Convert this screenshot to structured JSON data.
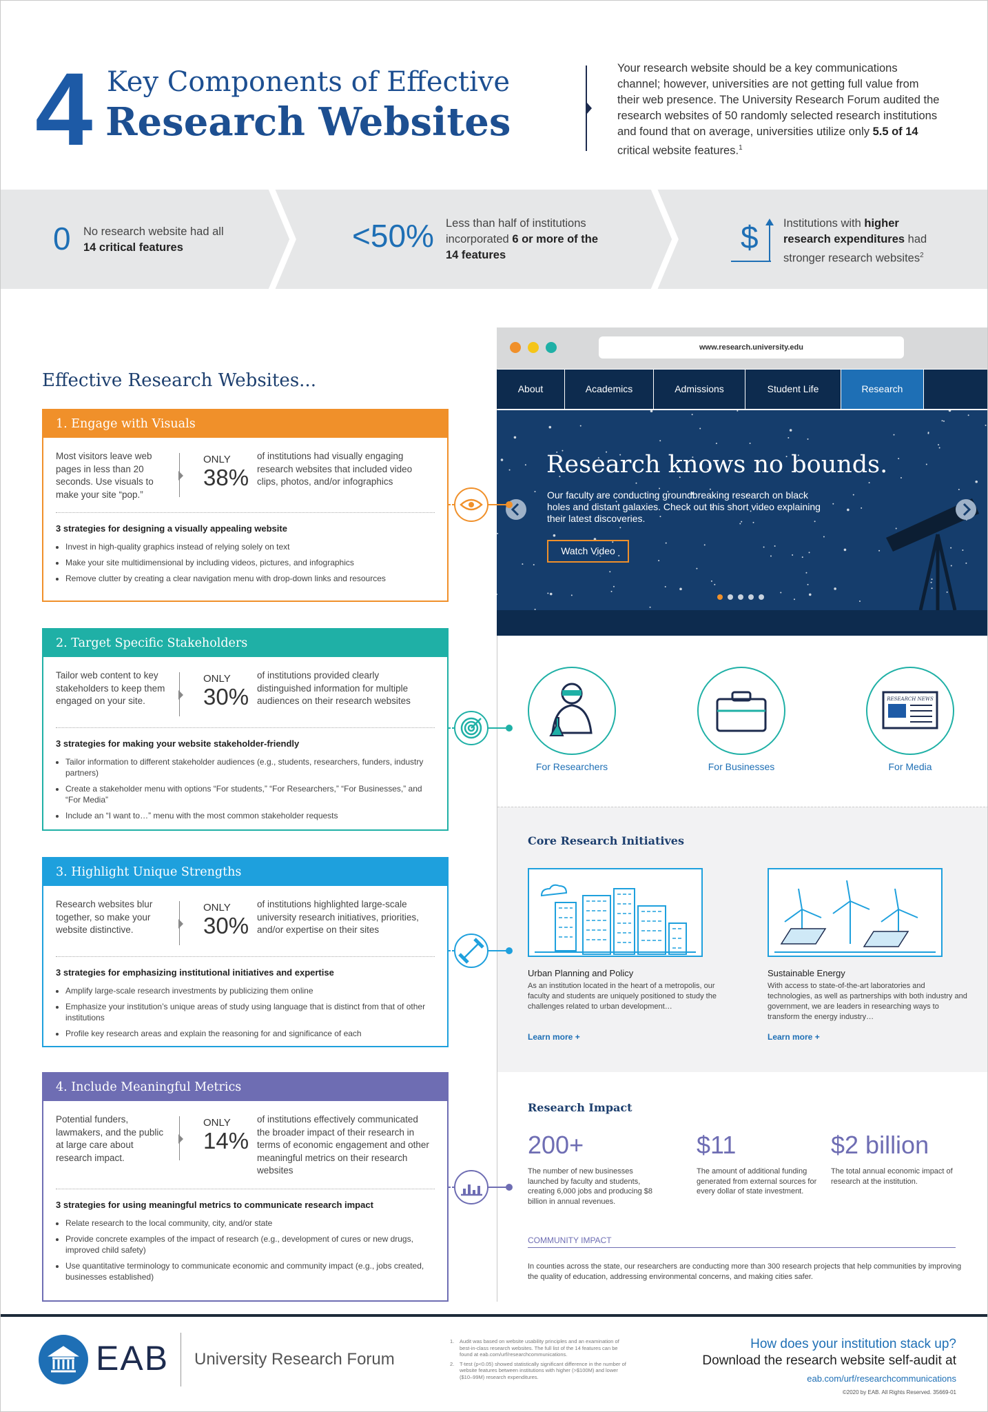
{
  "header": {
    "number": "4",
    "title_line1": "Key Components of Effective",
    "title_line2": "Research Websites",
    "intro": [
      {
        "text": "Your research website should be a key communications channel; however, universities are not getting full value from their web presence. The University Research Forum audited the research websites of 50 randomly selected research institutions and found that on average, universities utilize only "
      },
      {
        "text": "5.5 of 14",
        "bold": true
      },
      {
        "text": " critical website features."
      },
      {
        "text": "1",
        "sup": true
      }
    ]
  },
  "stats": [
    {
      "figure": "0",
      "parts": [
        {
          "text": "No research website had all "
        },
        {
          "text": "14 critical features",
          "bold": true
        }
      ]
    },
    {
      "figure": "<50%",
      "parts": [
        {
          "text": "Less than half of institutions incorporated "
        },
        {
          "text": "6 or more of the 14 features",
          "bold": true
        }
      ]
    },
    {
      "figure": "$",
      "parts": [
        {
          "text": "Institutions with "
        },
        {
          "text": "higher research expenditures",
          "bold": true
        },
        {
          "text": " had stronger research websites"
        },
        {
          "text": "2",
          "sup": true
        }
      ]
    }
  ],
  "sections": {
    "heading": "Effective Research Websites...",
    "items": [
      {
        "title": "1. Engage with Visuals",
        "color": "#f0902a",
        "lead": "Most visitors leave web pages in less than 20 seconds. Use visuals to make your site “pop.”",
        "only": "ONLY",
        "percent": "38%",
        "description": "of institutions had visually engaging research websites that included video clips, photos, and/or infographics",
        "strategies_title": "3 strategies for designing a visually appealing website",
        "strategies": [
          "Invest in high-quality graphics instead of relying solely on text",
          "Make your site multidimensional by including videos, pictures, and infographics",
          "Remove clutter by creating a clear navigation menu with drop-down links and resources"
        ]
      },
      {
        "title": "2. Target Specific Stakeholders",
        "color": "#1fb0a6",
        "lead": "Tailor web content to key stakeholders to keep them engaged on your site.",
        "only": "ONLY",
        "percent": "30%",
        "description": "of institutions provided clearly distinguished information for multiple audiences on their research websites",
        "strategies_title": "3 strategies for making your website stakeholder-friendly",
        "strategies": [
          "Tailor information to different stakeholder audiences (e.g., students, researchers, funders, industry partners)",
          "Create a stakeholder menu with options “For students,” “For Researchers,” “For Businesses,” and “For Media”",
          "Include an “I want to…” menu with the most common stakeholder requests"
        ]
      },
      {
        "title": "3. Highlight Unique Strengths",
        "color": "#1ea0dd",
        "lead": "Research websites blur together, so make your website distinctive.",
        "only": "ONLY",
        "percent": "30%",
        "description": "of institutions highlighted large-scale university research initiatives, priorities, and/or expertise on their sites",
        "strategies_title": "3 strategies for emphasizing institutional initiatives and expertise",
        "strategies": [
          "Amplify large-scale research investments by publicizing them online",
          "Emphasize your institution’s unique areas of study using language that is distinct from that of other institutions",
          "Profile key research areas and explain the reasoning for and significance of each"
        ]
      },
      {
        "title": "4. Include Meaningful Metrics",
        "color": "#6e6db3",
        "lead": "Potential funders, lawmakers, and the public at large care about research impact.",
        "only": "ONLY",
        "percent": "14%",
        "description": "of institutions effectively communicated the broader impact of their research in terms of economic engagement and other meaningful metrics on their research websites",
        "strategies_title": "3 strategies for using meaningful metrics to communicate research impact",
        "strategies": [
          "Relate research to the local community, city, and/or state",
          "Provide concrete examples of the impact of research (e.g., development of cures or new drugs, improved child safety)",
          "Use quantitative terminology to communicate economic and community impact (e.g., jobs created, businesses established)"
        ]
      }
    ]
  },
  "browser": {
    "url": "www.research.university.edu",
    "nav": [
      "About",
      "Academics",
      "Admissions",
      "Student Life",
      "Research"
    ],
    "active_index": 4,
    "hero": {
      "title": "Research knows no bounds.",
      "text": "Our faculty are conducting groundbreaking research on black holes and distant galaxies. Check out this short video explaining their latest discoveries.",
      "button": "Watch Video"
    },
    "audiences": [
      "For Researchers",
      "For Businesses",
      "For Media"
    ],
    "media_icon_text": "RESEARCH NEWS",
    "core": {
      "heading": "Core Research Initiatives",
      "cards": [
        {
          "title": "Urban Planning and Policy",
          "text": "As an institution located in the heart of a metropolis, our faculty and students are uniquely positioned to study the challenges related to urban development…",
          "link": "Learn more +"
        },
        {
          "title": "Sustainable Energy",
          "text": "With access to state-of-the-art laboratories and technologies, as well as partnerships with both industry and government, we are leaders in researching ways to transform the energy industry…",
          "link": "Learn more +"
        }
      ]
    },
    "impact": {
      "heading": "Research Impact",
      "metrics": [
        {
          "figure": "200+",
          "text": "The number of new businesses launched by faculty and students, creating 6,000 jobs and producing $8 billion in annual revenues."
        },
        {
          "figure": "$11",
          "text": "The amount of additional funding generated from external sources for every dollar of state investment."
        },
        {
          "figure": "$2 billion",
          "text": "The total annual economic impact of research at the institution."
        }
      ],
      "community_heading": "COMMUNITY IMPACT",
      "community_text": "In counties across the state, our researchers are conducting more than 300 research projects that help communities by improving the quality of education, addressing environmental concerns, and making cities safer."
    }
  },
  "footer": {
    "logo": "EAB",
    "forum": "University Research Forum",
    "footnotes": [
      {
        "number": "1.",
        "text": "Audit was based on website usability principles and an examination of best-in-class research websites. The full list of the 14 features can be found at eab.com/urf/researchcommunications."
      },
      {
        "number": "2.",
        "text": "T-test (p<0.05) showed statistically significant difference in the number of website features between institutions with higher (>$100M) and lower ($10–99M) research expenditures."
      }
    ],
    "cta_question": "How does your institution stack up?",
    "cta_text": "Download the research website self-audit at",
    "cta_url": "eab.com/urf/researchcommunications",
    "copyright": "©2020 by EAB. All Rights Reserved. 35669-01"
  }
}
